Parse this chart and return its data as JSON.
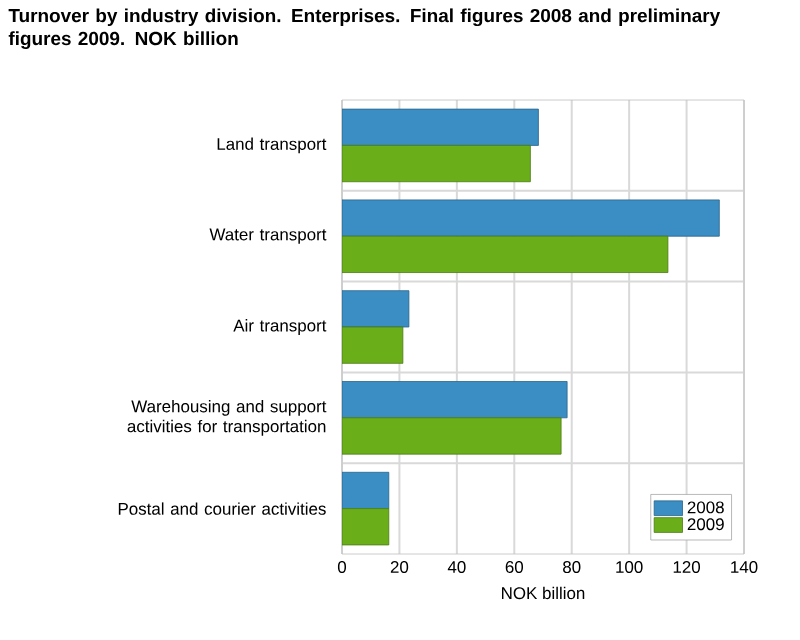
{
  "chart_data": {
    "type": "bar",
    "orientation": "horizontal",
    "title": "Turnover by industry division. Enterprises. Final figures 2008 and preliminary figures 2009. NOK billion",
    "xlabel": "NOK billion",
    "categories": [
      "Land transport",
      "Water transport",
      "Air transport",
      "Warehousing and support activities for transportation",
      "Postal and courier activities"
    ],
    "series": [
      {
        "name": "2008",
        "color": "#3a8ec3",
        "values": [
          68.4,
          131.4,
          23.3,
          78.4,
          16.3
        ]
      },
      {
        "name": "2009",
        "color": "#6aaf1a",
        "values": [
          65.6,
          113.5,
          21.2,
          76.3,
          16.3
        ]
      }
    ],
    "xlim": [
      0,
      140
    ],
    "xticks": [
      0,
      20,
      40,
      60,
      80,
      100,
      120,
      140
    ],
    "grid": true,
    "legend": "bottom right"
  }
}
